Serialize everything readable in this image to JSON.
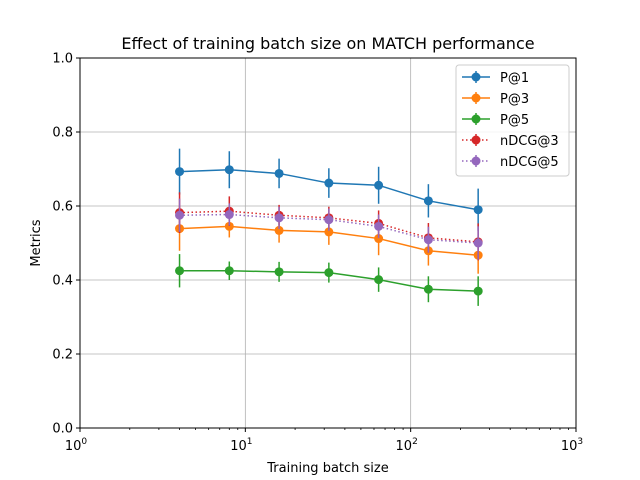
{
  "chart_data": {
    "type": "line",
    "title": "Effect of training batch size on MATCH performance",
    "xlabel": "Training batch size",
    "ylabel": "Metrics",
    "xscale": "log",
    "xlim": [
      1,
      1000
    ],
    "ylim": [
      0.0,
      1.0
    ],
    "grid": true,
    "legend_position": "top-right",
    "x": [
      4,
      8,
      16,
      32,
      64,
      128,
      256
    ],
    "x_ticks": [
      {
        "value": 1,
        "base": "10",
        "exp": "0"
      },
      {
        "value": 10,
        "base": "10",
        "exp": "1"
      },
      {
        "value": 100,
        "base": "10",
        "exp": "2"
      },
      {
        "value": 1000,
        "base": "10",
        "exp": "3"
      }
    ],
    "y_ticks": [
      {
        "value": 0.0,
        "label": "0.0"
      },
      {
        "value": 0.2,
        "label": "0.2"
      },
      {
        "value": 0.4,
        "label": "0.4"
      },
      {
        "value": 0.6,
        "label": "0.6"
      },
      {
        "value": 0.8,
        "label": "0.8"
      },
      {
        "value": 1.0,
        "label": "1.0"
      }
    ],
    "series": [
      {
        "name": "P@1",
        "color": "#1f77b4",
        "dash": "solid",
        "values": [
          0.693,
          0.698,
          0.688,
          0.662,
          0.656,
          0.614,
          0.59
        ],
        "errors": [
          0.062,
          0.05,
          0.04,
          0.04,
          0.05,
          0.045,
          0.057
        ]
      },
      {
        "name": "P@3",
        "color": "#ff7f0e",
        "dash": "solid",
        "values": [
          0.539,
          0.545,
          0.534,
          0.53,
          0.512,
          0.479,
          0.467
        ],
        "errors": [
          0.06,
          0.03,
          0.033,
          0.035,
          0.045,
          0.04,
          0.05
        ]
      },
      {
        "name": "P@5",
        "color": "#2ca02c",
        "dash": "solid",
        "values": [
          0.425,
          0.425,
          0.422,
          0.42,
          0.401,
          0.375,
          0.37
        ],
        "errors": [
          0.045,
          0.025,
          0.027,
          0.027,
          0.033,
          0.035,
          0.04
        ]
      },
      {
        "name": "nDCG@3",
        "color": "#d62728",
        "dash": "dotted",
        "values": [
          0.582,
          0.586,
          0.575,
          0.568,
          0.553,
          0.514,
          0.503
        ],
        "errors": [
          0.055,
          0.04,
          0.028,
          0.03,
          0.035,
          0.04,
          0.05
        ]
      },
      {
        "name": "nDCG@5",
        "color": "#9467bd",
        "dash": "dotted",
        "values": [
          0.575,
          0.577,
          0.568,
          0.563,
          0.545,
          0.509,
          0.5
        ],
        "errors": [
          0.045,
          0.03,
          0.03,
          0.03,
          0.032,
          0.035,
          0.045
        ]
      }
    ]
  }
}
